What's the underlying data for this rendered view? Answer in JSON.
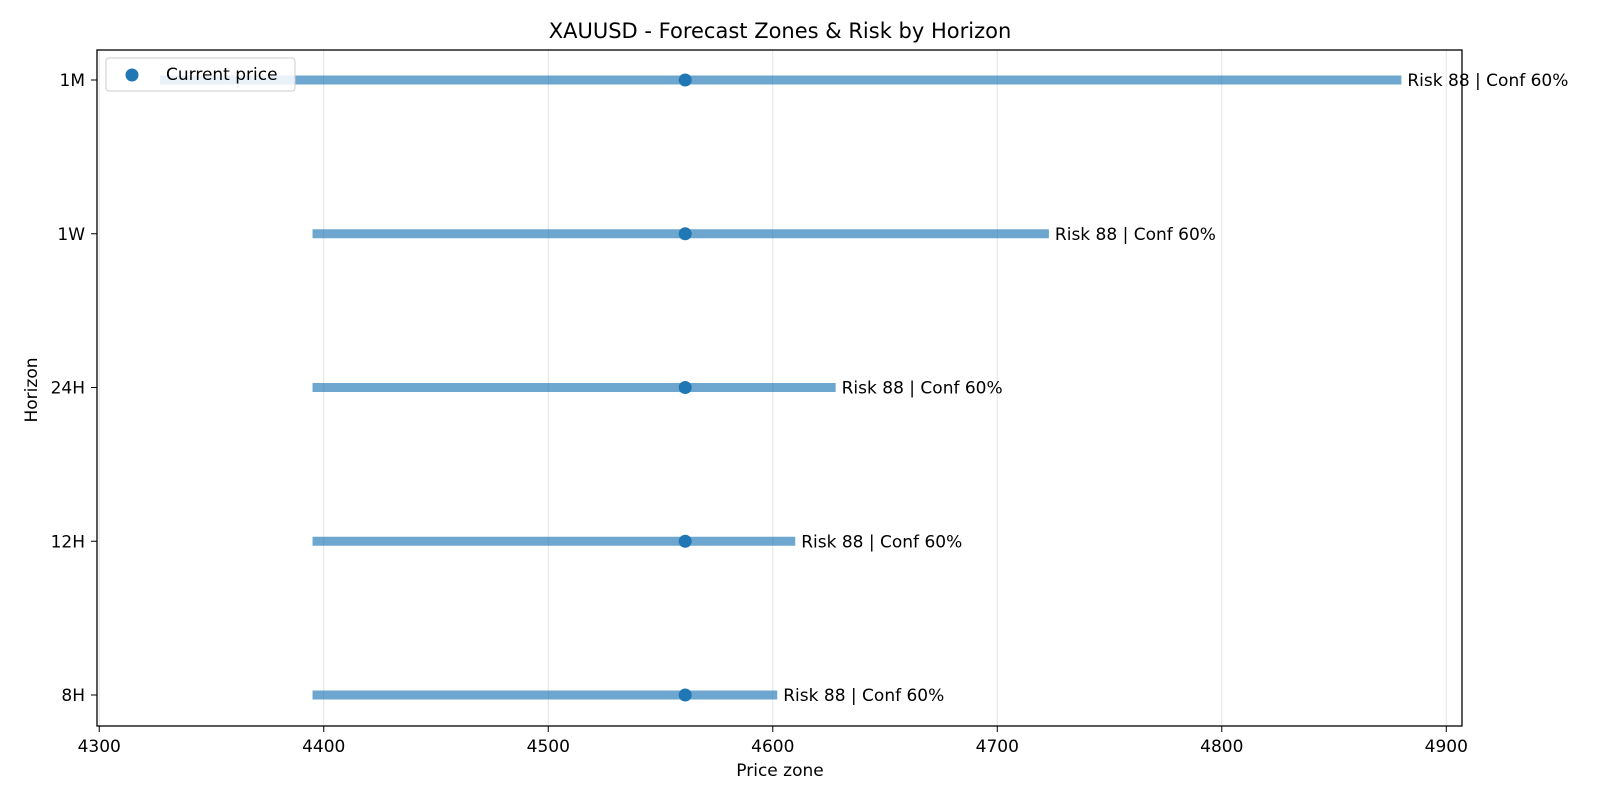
{
  "chart_data": {
    "type": "range",
    "title": "XAUUSD - Forecast Zones & Risk by Horizon",
    "xlabel": "Price zone",
    "ylabel": "Horizon",
    "xlim": [
      4299,
      4907
    ],
    "xticks": [
      4300,
      4400,
      4500,
      4600,
      4700,
      4800,
      4900
    ],
    "grid": "vertical",
    "legend": {
      "position": "top-left",
      "label": "Current price"
    },
    "series_color": "#1f77b4",
    "categories": [
      "8H",
      "12H",
      "24H",
      "1W",
      "1M"
    ],
    "ranges": [
      {
        "horizon": "8H",
        "low": 4395,
        "high": 4602,
        "current": 4561,
        "label": "Risk 88 | Conf 60%"
      },
      {
        "horizon": "12H",
        "low": 4395,
        "high": 4610,
        "current": 4561,
        "label": "Risk 88 | Conf 60%"
      },
      {
        "horizon": "24H",
        "low": 4395,
        "high": 4628,
        "current": 4561,
        "label": "Risk 88 | Conf 60%"
      },
      {
        "horizon": "1W",
        "low": 4395,
        "high": 4723,
        "current": 4561,
        "label": "Risk 88 | Conf 60%"
      },
      {
        "horizon": "1M",
        "low": 4327,
        "high": 4880,
        "current": 4561,
        "label": "Risk 88 | Conf 60%"
      }
    ]
  }
}
